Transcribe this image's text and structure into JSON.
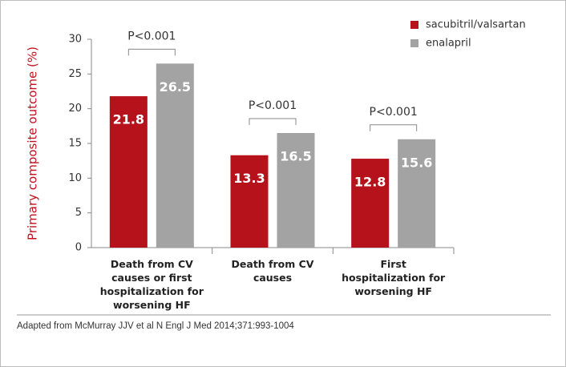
{
  "chart_data": {
    "type": "bar",
    "y_label": "Primary composite outcome (%)",
    "categories": [
      "Death from CV causes or first hospitalization for worsening HF",
      "Death from CV causes",
      "First hospitalization for worsening HF"
    ],
    "series": [
      {
        "name": "sacubitril/valsartan",
        "color": "#b5121b",
        "values": [
          21.8,
          13.3,
          12.8
        ]
      },
      {
        "name": "enalapril",
        "color": "#a3a3a3",
        "values": [
          26.5,
          16.5,
          15.6
        ]
      }
    ],
    "p_values": [
      "P<0.001",
      "P<0.001",
      "P<0.001"
    ],
    "ylim": [
      0,
      30
    ],
    "yticks": [
      0,
      5,
      10,
      15,
      20,
      25,
      30
    ],
    "legend": "top-right",
    "source": "Adapted from McMurray JJV et al N Engl J Med 2014;371:993-1004"
  }
}
